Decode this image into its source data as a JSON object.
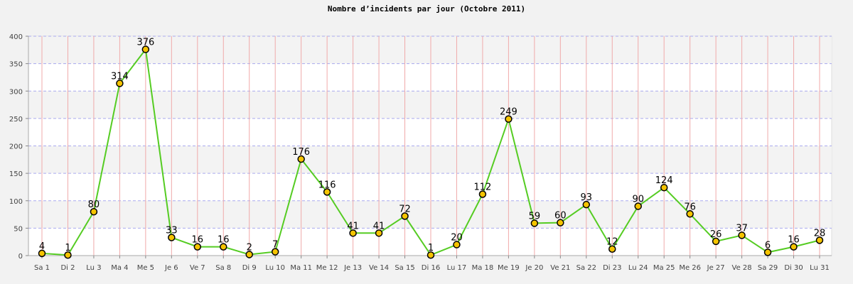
{
  "chart_data": {
    "type": "line",
    "title": "Nombre d’incidents par jour (Octobre 2011)",
    "xlabel": "",
    "ylabel": "",
    "ylim": [
      0,
      400
    ],
    "yticks": [
      0,
      50,
      100,
      150,
      200,
      250,
      300,
      350,
      400
    ],
    "categories": [
      "Sa 1",
      "Di 2",
      "Lu 3",
      "Ma 4",
      "Me 5",
      "Je 6",
      "Ve 7",
      "Sa 8",
      "Di 9",
      "Lu 10",
      "Ma 11",
      "Me 12",
      "Je 13",
      "Ve 14",
      "Sa 15",
      "Di 16",
      "Lu 17",
      "Ma 18",
      "Me 19",
      "Je 20",
      "Ve 21",
      "Sa 22",
      "Di 23",
      "Lu 24",
      "Ma 25",
      "Me 26",
      "Je 27",
      "Ve 28",
      "Sa 29",
      "Di 30",
      "Lu 31"
    ],
    "values": [
      4,
      1,
      80,
      314,
      376,
      33,
      16,
      16,
      2,
      7,
      176,
      116,
      41,
      41,
      72,
      1,
      20,
      112,
      249,
      59,
      60,
      93,
      12,
      90,
      124,
      76,
      26,
      37,
      6,
      16,
      28
    ],
    "colors": {
      "line": "#55cc22",
      "marker_fill": "#f5c400",
      "marker_edge": "#000000",
      "vgrid": "#f0aaaa",
      "hgrid": "#aaaaee",
      "band": "#f3f3f3",
      "plot_bg": "#ffffff"
    },
    "grid": true,
    "legend": "none"
  }
}
